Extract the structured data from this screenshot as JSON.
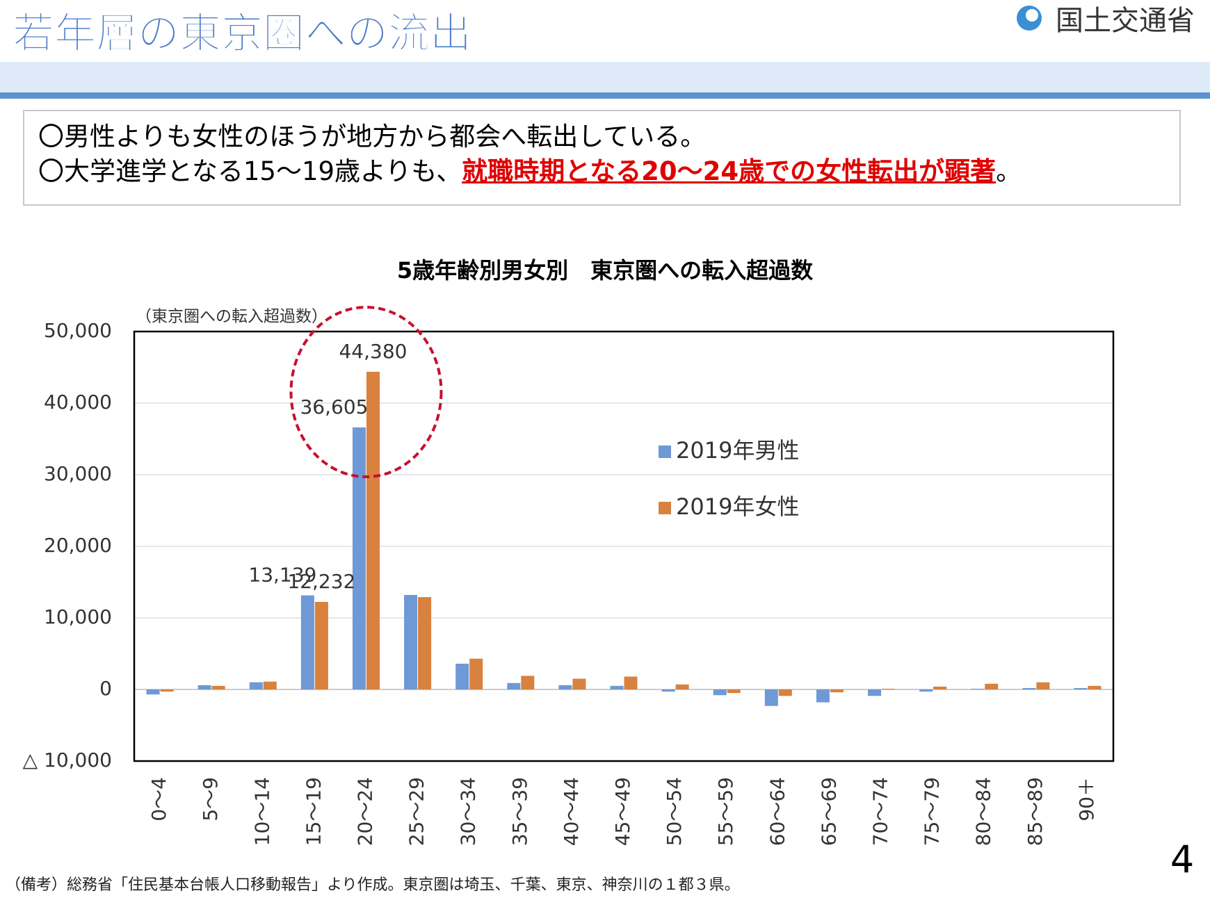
{
  "header": {
    "title": "若年層の東京圏への流出",
    "logo": "国土交通省"
  },
  "bullets": [
    {
      "text": "〇男性よりも女性のほうが地方から都会へ転出している。"
    },
    {
      "text": "〇大学進学となる15～19歳よりも、",
      "highlight": "就職時期となる20～24歳での女性転出が顕著",
      "tail": "。"
    }
  ],
  "chart_data": {
    "type": "bar",
    "title": "5歳年齢別男女別　東京圏への転入超過数",
    "y_label": "（東京圏への転入超過数）",
    "categories": [
      "0～4",
      "5～9",
      "10～14",
      "15～19",
      "20～24",
      "25～29",
      "30～34",
      "35～39",
      "40～44",
      "45～49",
      "50～54",
      "55～59",
      "60～64",
      "65～69",
      "70～74",
      "75～79",
      "80～84",
      "85～89",
      "90＋"
    ],
    "series": [
      {
        "name": "2019年男性",
        "color": "#6f98d6",
        "values": [
          -700,
          600,
          1000,
          13139,
          36605,
          13200,
          3600,
          900,
          600,
          500,
          -300,
          -800,
          -2300,
          -1800,
          -900,
          -300,
          100,
          200,
          200
        ],
        "value_labels": [
          null,
          null,
          null,
          "13,139",
          "36,605",
          null,
          null,
          null,
          null,
          null,
          null,
          null,
          null,
          null,
          null,
          null,
          null,
          null,
          null
        ]
      },
      {
        "name": "2019年女性",
        "color": "#d9813e",
        "values": [
          -300,
          500,
          1100,
          12232,
          44380,
          12900,
          4300,
          1900,
          1500,
          1800,
          700,
          -500,
          -900,
          -400,
          100,
          400,
          800,
          1000,
          500
        ],
        "value_labels": [
          null,
          null,
          null,
          "12,232",
          "44,380",
          null,
          null,
          null,
          null,
          null,
          null,
          null,
          null,
          null,
          null,
          null,
          null,
          null,
          null
        ]
      }
    ],
    "ylim": [
      -10000,
      50000
    ],
    "yticks": [
      {
        "value": -10000,
        "label": "△ 10,000"
      },
      0,
      {
        "value": 10000,
        "label": "10,000"
      },
      {
        "value": 20000,
        "label": "20,000"
      },
      {
        "value": 30000,
        "label": "30,000"
      },
      {
        "value": 40000,
        "label": "40,000"
      },
      {
        "value": 50000,
        "label": "50,000"
      }
    ],
    "grid": true
  },
  "footnote": "（備考）総務省「住民基本台帳人口移動報告」より作成。東京圏は埼玉、千葉、東京、神奈川の１都３県。",
  "page_number": "4"
}
